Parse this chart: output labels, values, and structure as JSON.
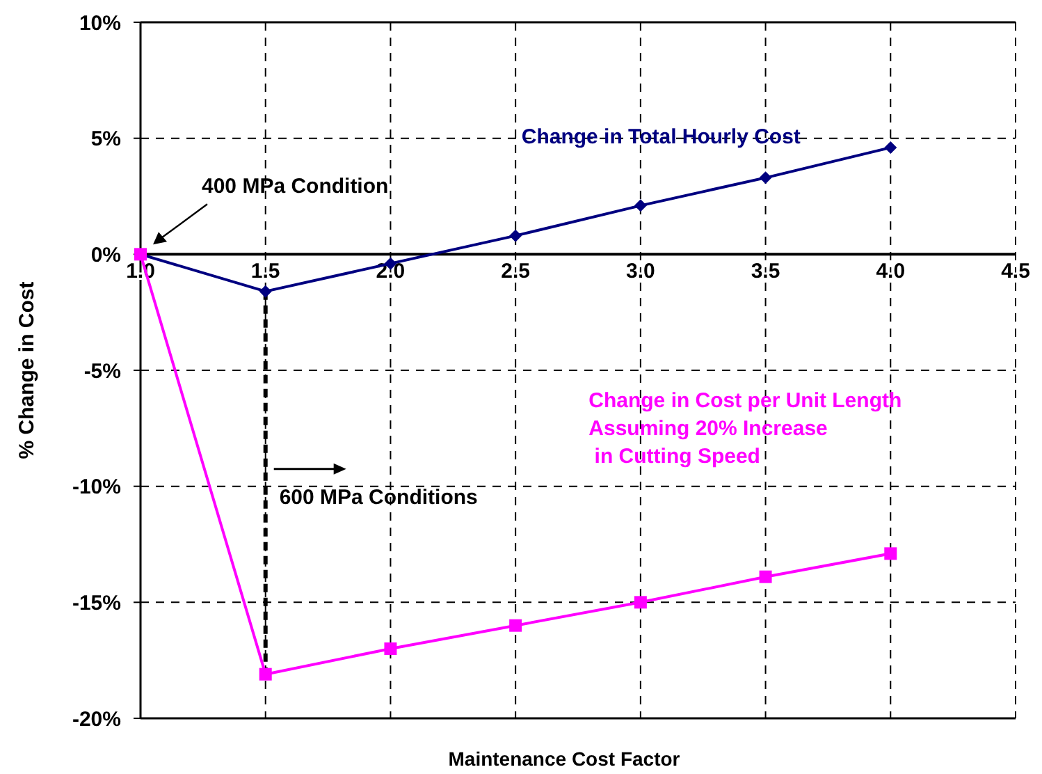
{
  "chart_data": {
    "type": "line",
    "xlabel": "Maintenance Cost Factor",
    "ylabel": "% Change in Cost",
    "x": [
      1.0,
      1.5,
      2.0,
      2.5,
      3.0,
      3.5,
      4.0
    ],
    "series": [
      {
        "name": "Change in Total Hourly Cost",
        "color": "#000080",
        "marker": "diamond",
        "values": [
          0,
          -1.6,
          -0.4,
          0.8,
          2.1,
          3.3,
          4.6
        ]
      },
      {
        "name": "Change in Cost per Unit Length\nAssuming 20% Increase\n in Cutting Speed",
        "color": "#ff00ff",
        "marker": "square",
        "values": [
          0,
          -18.1,
          -17.0,
          -16.0,
          -15.0,
          -13.9,
          -12.9
        ]
      }
    ],
    "xlim": [
      1.0,
      4.5
    ],
    "xticks": [
      {
        "value": 1,
        "label": "1.0"
      },
      {
        "value": 1.5,
        "label": "1.5"
      },
      {
        "value": 2,
        "label": "2.0"
      },
      {
        "value": 2.5,
        "label": "2.5"
      },
      {
        "value": 3,
        "label": "3.0"
      },
      {
        "value": 3.5,
        "label": "3.5"
      },
      {
        "value": 4,
        "label": "4.0"
      },
      {
        "value": 4.5,
        "label": "4.5"
      }
    ],
    "ylim": [
      -20,
      10
    ],
    "yticks": [
      {
        "value": -20,
        "label": "-20%"
      },
      {
        "value": -15,
        "label": "-15%"
      },
      {
        "value": -10,
        "label": "-10%"
      },
      {
        "value": -5,
        "label": "-5%"
      },
      {
        "value": 0,
        "label": "0%"
      },
      {
        "value": 5,
        "label": "5%"
      },
      {
        "value": 10,
        "label": "10%"
      }
    ],
    "grid": true,
    "line_style": "solid",
    "ref_lines": [
      {
        "axis": "x",
        "value": 1.5,
        "label": "600 MPa Conditions",
        "color": "#000000",
        "line_style": "dashed"
      }
    ],
    "annotations": [
      "400 MPa Condition"
    ]
  }
}
